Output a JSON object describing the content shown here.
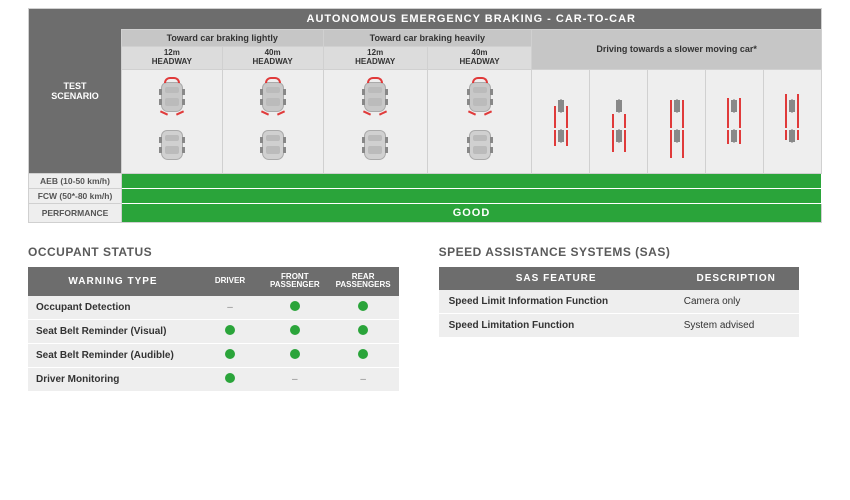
{
  "aeb": {
    "title": "AUTONOMOUS EMERGENCY BRAKING - CAR-TO-CAR",
    "side_label": "TEST\nSCENARIO",
    "groups": {
      "light": "Toward car braking lightly",
      "heavy": "Toward car braking heavily",
      "slower": "Driving towards a slower moving car*"
    },
    "headways": {
      "h12": "12m\nHEADWAY",
      "h40": "40m\nHEADWAY"
    },
    "rows": {
      "aeb_label": "AEB (10-50 km/h)",
      "fcw_label": "FCW (50*-80 km/h)",
      "perf_label": "PERFORMANCE",
      "perf_value": "GOOD"
    },
    "colors": {
      "good": "#2aa43a",
      "header_dark": "#6d6d6d",
      "header_mid": "#c6c6c6",
      "header_light": "#dcdcdc",
      "cell_bg": "#eeeeee",
      "accent_red": "#e03a3a"
    }
  },
  "occupant": {
    "title": "OCCUPANT STATUS",
    "headers": {
      "wt": "WARNING TYPE",
      "d": "DRIVER",
      "fp": "FRONT\nPASSENGER",
      "rp": "REAR\nPASSENGERS"
    },
    "rows": [
      {
        "label": "Occupant Detection",
        "d": "dash",
        "fp": "dot",
        "rp": "dot"
      },
      {
        "label": "Seat Belt Reminder (Visual)",
        "d": "dot",
        "fp": "dot",
        "rp": "dot"
      },
      {
        "label": "Seat Belt Reminder (Audible)",
        "d": "dot",
        "fp": "dot",
        "rp": "dot"
      },
      {
        "label": "Driver Monitoring",
        "d": "dot",
        "fp": "dash",
        "rp": "dash"
      }
    ]
  },
  "sas": {
    "title": "SPEED ASSISTANCE SYSTEMS (SAS)",
    "headers": {
      "f": "SAS FEATURE",
      "d": "DESCRIPTION"
    },
    "rows": [
      {
        "feature": "Speed Limit Information Function",
        "desc": "Camera only"
      },
      {
        "feature": "Speed Limitation Function",
        "desc": "System advised"
      }
    ]
  }
}
